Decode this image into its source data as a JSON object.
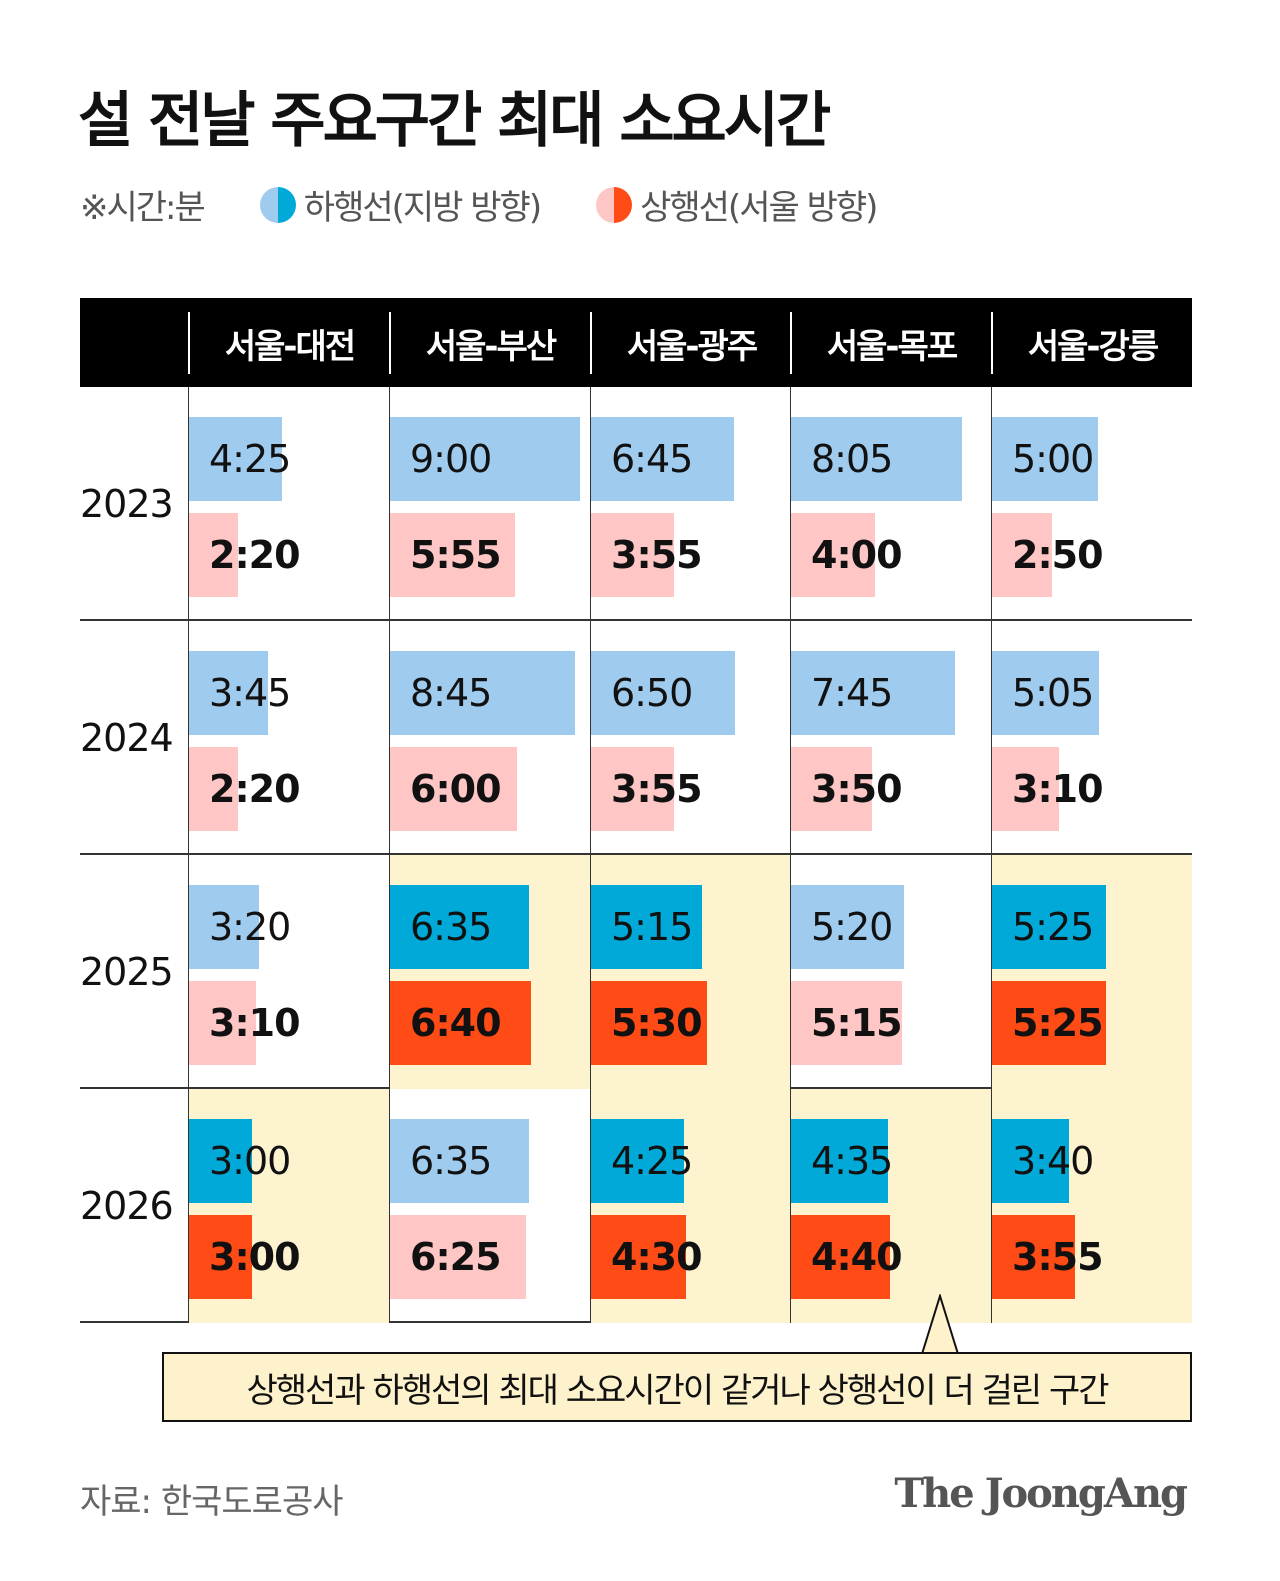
{
  "title": "설 전날 주요구간 최대 소요시간",
  "legend": {
    "unit": "※시간:분",
    "down": "하행선(지방 방향)",
    "up": "상행선(서울 방향)"
  },
  "colors": {
    "down_light": "#9fcbee",
    "down_dark": "#00a9d7",
    "up_light": "#ffc6c6",
    "up_dark": "#ff4b15",
    "highlight_bg": "#fdf3cf"
  },
  "chart_data": {
    "type": "table",
    "columns": [
      "서울-대전",
      "서울-부산",
      "서울-광주",
      "서울-목포",
      "서울-강릉"
    ],
    "rows": [
      {
        "year": "2023",
        "down": [
          "4:25",
          "9:00",
          "6:45",
          "8:05",
          "5:00"
        ],
        "up": [
          "2:20",
          "5:55",
          "3:55",
          "4:00",
          "2:50"
        ],
        "highlight": [
          false,
          false,
          false,
          false,
          false
        ]
      },
      {
        "year": "2024",
        "down": [
          "3:45",
          "8:45",
          "6:50",
          "7:45",
          "5:05"
        ],
        "up": [
          "2:20",
          "6:00",
          "3:55",
          "3:50",
          "3:10"
        ],
        "highlight": [
          false,
          false,
          false,
          false,
          false
        ]
      },
      {
        "year": "2025",
        "down": [
          "3:20",
          "6:35",
          "5:15",
          "5:20",
          "5:25"
        ],
        "up": [
          "3:10",
          "6:40",
          "5:30",
          "5:15",
          "5:25"
        ],
        "highlight": [
          false,
          true,
          true,
          false,
          true
        ]
      },
      {
        "year": "2026",
        "down": [
          "3:00",
          "6:35",
          "4:25",
          "4:35",
          "3:40"
        ],
        "up": [
          "3:00",
          "6:25",
          "4:30",
          "4:40",
          "3:55"
        ],
        "highlight": [
          true,
          false,
          true,
          true,
          true
        ]
      }
    ]
  },
  "callout": "상행선과 하행선의 최대 소요시간이 같거나 상행선이 더 걸린 구간",
  "source": "자료: 한국도로공사",
  "logo": "The JoongAng"
}
